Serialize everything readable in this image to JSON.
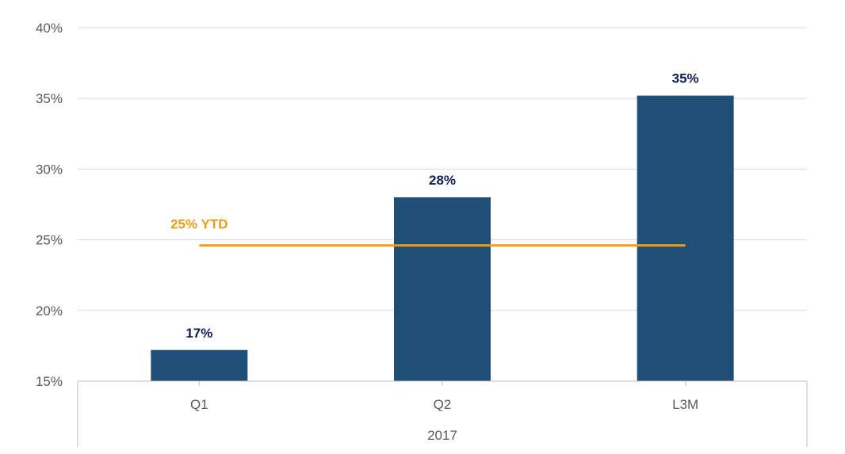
{
  "chart_data": {
    "type": "bar",
    "categories": [
      "Q1",
      "Q2",
      "L3M"
    ],
    "group_label": "2017",
    "values": [
      17.2,
      28.0,
      35.2
    ],
    "value_labels": [
      "17%",
      "28%",
      "35%"
    ],
    "ylim": [
      15,
      40
    ],
    "yticks": [
      15,
      20,
      25,
      30,
      35,
      40
    ],
    "ytick_labels": [
      "15%",
      "20%",
      "25%",
      "30%",
      "35%",
      "40%"
    ],
    "grid": true,
    "reference_line": {
      "value": 24.6,
      "label": "25% YTD",
      "color": "#f39c12"
    },
    "bar_color": "#1f4e79",
    "data_label_color": "#0d1a5c"
  }
}
